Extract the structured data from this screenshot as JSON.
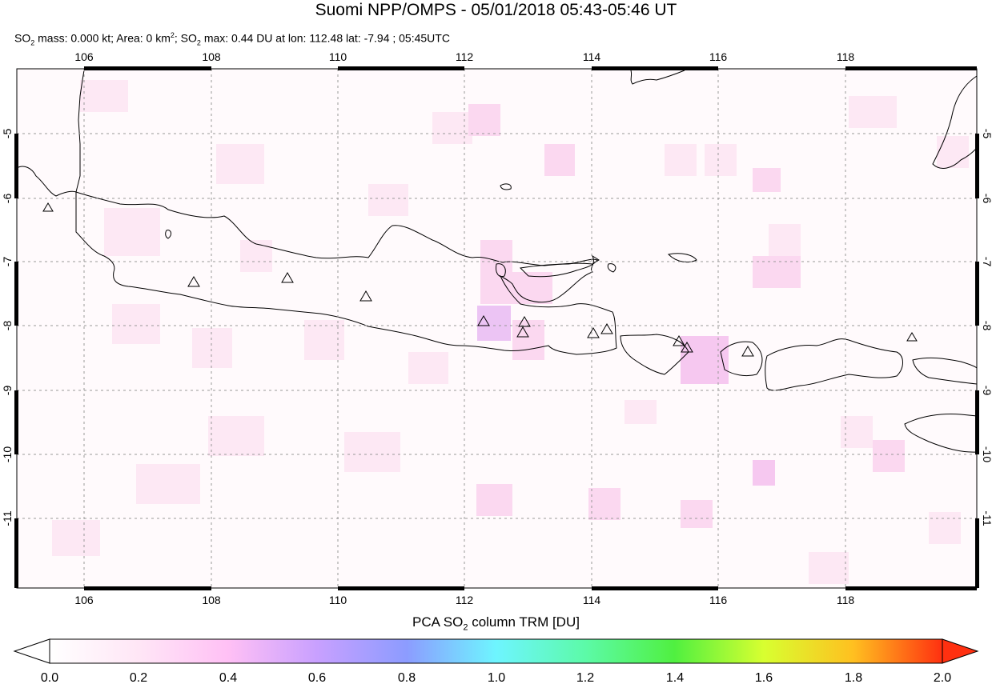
{
  "title": "Suomi NPP/OMPS - 05/01/2018 05:43-05:46 UT",
  "subtitle": {
    "so2_prefix": "SO",
    "so2_sub": "2",
    "mass_text": " mass: 0.000 kt; Area: 0 km",
    "area_sup": "2",
    "sep": "; SO",
    "max_sub": "2",
    "max_text": " max: 0.44 DU at lon: 112.48 lat: -7.94 ; 05:45UTC"
  },
  "map": {
    "lon_range": [
      105,
      120
    ],
    "lat_range": [
      -12,
      -4
    ],
    "lon_ticks": [
      "106",
      "108",
      "110",
      "112",
      "114",
      "116",
      "118"
    ],
    "lat_ticks": [
      "-5",
      "-6",
      "-7",
      "-8",
      "-9",
      "-10",
      "-11"
    ],
    "grid": true,
    "volcano_icon": "triangle-volcano-icon"
  },
  "colorbar": {
    "label_prefix": "PCA SO",
    "label_sub": "2",
    "label_suffix": " column TRM [DU]",
    "ticks": [
      "0.0",
      "0.2",
      "0.4",
      "0.6",
      "0.8",
      "1.0",
      "1.2",
      "1.4",
      "1.6",
      "1.8",
      "2.0"
    ],
    "range": [
      0,
      2
    ],
    "colors": [
      "#ffffff",
      "#ffe0f5",
      "#f0b0ff",
      "#b090ff",
      "#8ab0ff",
      "#6ef0ff",
      "#60ff9a",
      "#60ff40",
      "#d8ff30",
      "#ffc020",
      "#ff5010",
      "#ff2000"
    ]
  }
}
